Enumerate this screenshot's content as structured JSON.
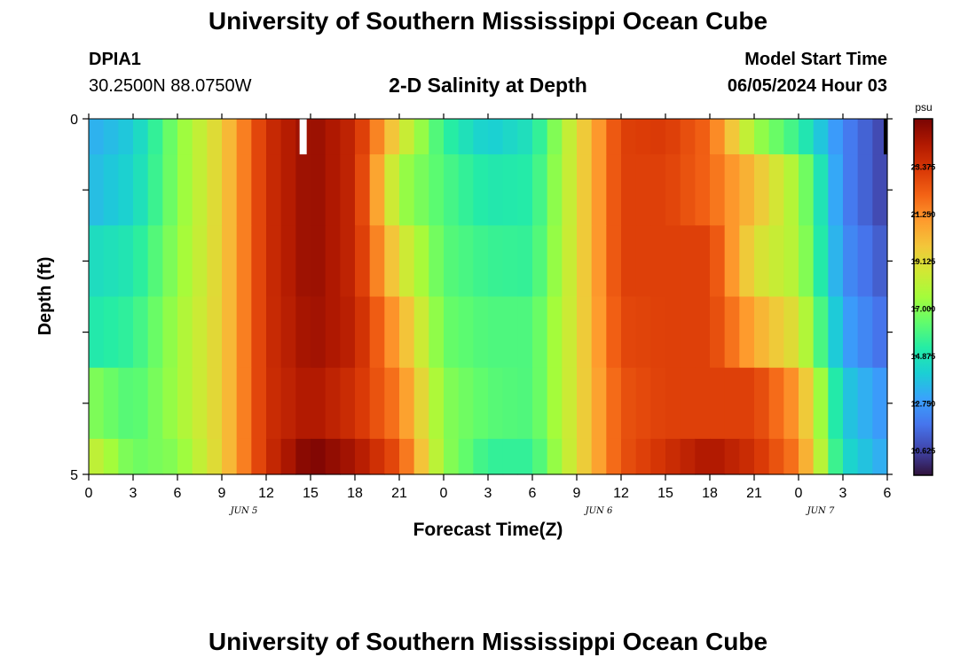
{
  "header": {
    "title": "University of Southern Mississippi Ocean Cube",
    "station_id": "DPIA1",
    "station_coords": "30.2500N  88.0750W",
    "plot_title": "2-D Salinity at Depth",
    "start_label": "Model Start Time",
    "start_value": "06/05/2024 Hour 03"
  },
  "footer": {
    "title": "University of Southern Mississippi Ocean Cube"
  },
  "chart_data": {
    "type": "heatmap",
    "title": "2-D Salinity at Depth",
    "xlabel": "Forecast Time(Z)",
    "ylabel": "Depth (ft)",
    "x_tick_labels": [
      "0",
      "3",
      "6",
      "9",
      "12",
      "15",
      "18",
      "21",
      "0",
      "3",
      "6",
      "9",
      "12",
      "15",
      "18",
      "21",
      "0",
      "3",
      "6"
    ],
    "date_labels": [
      {
        "label": "JUN 5",
        "tick": 3.5
      },
      {
        "label": "JUN 6",
        "tick": 11.5
      },
      {
        "label": "JUN 7",
        "tick": 16.5
      }
    ],
    "y_tick_labels": [
      "0",
      "5"
    ],
    "ylim": [
      0,
      5
    ],
    "x_hours": [
      0,
      54
    ],
    "colorbar": {
      "unit": "psu",
      "min": 9.5,
      "max": 25.5,
      "tick_labels": [
        "23.375",
        "21.250",
        "19.125",
        "17.000",
        "14.875",
        "12.750",
        "10.625"
      ],
      "colors": [
        "#30123b",
        "#4145ab",
        "#4675ed",
        "#39a2fc",
        "#1bcfd4",
        "#24eca6",
        "#61fc6c",
        "#a4fc3b",
        "#d1e834",
        "#f3c63a",
        "#fe9b2d",
        "#f36315",
        "#d93806",
        "#b11901",
        "#7a0403"
      ]
    },
    "depth_rows": [
      "0-0.5 ft",
      "0.5-1.5 ft",
      "1.5-2.5 ft",
      "2.5-3.5 ft",
      "3.5-4.5 ft",
      "4.5-5 ft"
    ],
    "series": [
      {
        "hours": [
          0,
          3,
          6,
          9,
          12,
          15,
          18,
          21,
          24,
          27,
          30,
          33,
          36,
          39,
          42,
          45,
          48,
          51,
          54
        ],
        "values": [
          13.2,
          14.0,
          17.0,
          19.5,
          23.5,
          25.0,
          23.8,
          19.0,
          15.5,
          14.0,
          14.8,
          19.0,
          23.0,
          23.2,
          22.0,
          17.5,
          15.5,
          12.2,
          10.5
        ]
      },
      {
        "hours": [
          0,
          3,
          6,
          9,
          12,
          15,
          18,
          21,
          24,
          27,
          30,
          33,
          36,
          39,
          42,
          45,
          48,
          51,
          54
        ],
        "values": [
          13.5,
          14.3,
          17.0,
          19.5,
          23.5,
          25.0,
          23.8,
          17.5,
          16.0,
          15.0,
          15.2,
          19.0,
          23.0,
          23.0,
          22.0,
          20.0,
          17.5,
          12.2,
          10.5
        ]
      },
      {
        "hours": [
          0,
          3,
          6,
          9,
          12,
          15,
          18,
          21,
          24,
          27,
          30,
          33,
          36,
          39,
          42,
          45,
          48,
          51,
          54
        ],
        "values": [
          14.5,
          15.0,
          17.2,
          19.5,
          23.5,
          25.0,
          23.8,
          19.0,
          16.2,
          15.6,
          15.5,
          19.0,
          23.0,
          23.0,
          23.0,
          19.0,
          17.8,
          12.5,
          11.0
        ]
      },
      {
        "hours": [
          0,
          3,
          6,
          9,
          12,
          15,
          18,
          21,
          24,
          27,
          30,
          33,
          36,
          39,
          42,
          45,
          48,
          51,
          54
        ],
        "values": [
          15.0,
          15.5,
          17.5,
          19.5,
          23.5,
          24.8,
          24.0,
          20.5,
          16.5,
          16.0,
          16.0,
          19.0,
          22.8,
          23.0,
          23.0,
          20.5,
          18.8,
          13.0,
          11.5
        ]
      },
      {
        "hours": [
          0,
          3,
          6,
          9,
          12,
          15,
          18,
          21,
          24,
          27,
          30,
          33,
          36,
          39,
          42,
          45,
          48,
          51,
          54
        ],
        "values": [
          17.0,
          16.0,
          17.5,
          19.5,
          23.5,
          24.5,
          23.5,
          21.5,
          17.0,
          16.2,
          16.0,
          19.0,
          22.5,
          23.0,
          23.0,
          23.0,
          20.8,
          14.0,
          12.5
        ]
      },
      {
        "hours": [
          0,
          3,
          6,
          9,
          12,
          15,
          18,
          21,
          24,
          27,
          30,
          33,
          36,
          39,
          42,
          45,
          48,
          51,
          54
        ],
        "values": [
          18.5,
          16.5,
          17.0,
          19.5,
          23.5,
          25.5,
          24.5,
          22.5,
          17.2,
          15.5,
          15.5,
          19.0,
          22.5,
          23.5,
          24.5,
          23.5,
          21.5,
          14.5,
          13.0
        ]
      }
    ],
    "missing": [
      {
        "hour": 14.5,
        "row": 0,
        "color": "white"
      },
      {
        "hour": 54,
        "row": 0,
        "color": "black"
      }
    ],
    "grid": false,
    "legend": "colorbar-right"
  }
}
